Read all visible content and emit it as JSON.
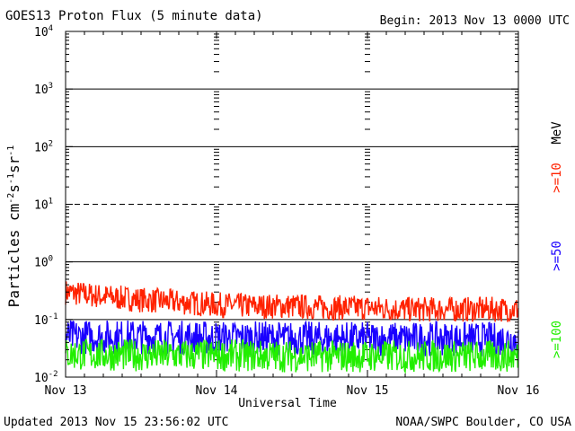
{
  "header": {
    "title": "GOES13 Proton Flux (5 minute data)",
    "begin": "Begin: 2013 Nov 13 0000 UTC"
  },
  "footer": {
    "updated": "Updated 2013 Nov 15 23:56:02 UTC",
    "credit": "NOAA/SWPC Boulder, CO USA"
  },
  "legend": {
    "unit": "MeV"
  },
  "chart_data": {
    "type": "line",
    "title": "GOES13 Proton Flux (5 minute data)",
    "xlabel": "Universal Time",
    "ylabel_parts": [
      "Particles cm",
      "-2",
      "s",
      "-1",
      "sr",
      "-1"
    ],
    "yscale": "log",
    "ylim": [
      0.01,
      10000
    ],
    "ytick_base": "10",
    "yticks": [
      {
        "exp": "4",
        "value": 10000
      },
      {
        "exp": "3",
        "value": 1000
      },
      {
        "exp": "2",
        "value": 100
      },
      {
        "exp": "1",
        "value": 10
      },
      {
        "exp": "0",
        "value": 1
      },
      {
        "exp": "-1",
        "value": 0.1
      },
      {
        "exp": "-2",
        "value": 0.01
      }
    ],
    "xlim": [
      "2013-11-13",
      "2013-11-16"
    ],
    "xticks": [
      {
        "label": "Nov 13",
        "value": "2013-11-13"
      },
      {
        "label": "Nov 14",
        "value": "2013-11-14"
      },
      {
        "label": "Nov 15",
        "value": "2013-11-15"
      },
      {
        "label": "Nov 16",
        "value": "2013-11-16"
      }
    ],
    "threshold_line": 10,
    "grid": true,
    "series": [
      {
        "name": ">=10",
        "color": "#ff2200",
        "x": [
          "2013-11-13 00:00",
          "2013-11-13 06:00",
          "2013-11-13 12:00",
          "2013-11-13 18:00",
          "2013-11-14 00:00",
          "2013-11-14 06:00",
          "2013-11-14 12:00",
          "2013-11-14 18:00",
          "2013-11-15 00:00",
          "2013-11-15 06:00",
          "2013-11-15 12:00",
          "2013-11-15 18:00",
          "2013-11-16 00:00"
        ],
        "values": [
          0.3,
          0.25,
          0.22,
          0.2,
          0.18,
          0.17,
          0.17,
          0.16,
          0.16,
          0.15,
          0.15,
          0.15,
          0.15
        ]
      },
      {
        "name": ">=50",
        "color": "#1a00ff",
        "x": [
          "2013-11-13 00:00",
          "2013-11-13 12:00",
          "2013-11-14 00:00",
          "2013-11-14 12:00",
          "2013-11-15 00:00",
          "2013-11-15 12:00",
          "2013-11-16 00:00"
        ],
        "values": [
          0.05,
          0.05,
          0.048,
          0.047,
          0.046,
          0.046,
          0.045
        ]
      },
      {
        "name": ">=100",
        "color": "#22ee00",
        "x": [
          "2013-11-13 00:00",
          "2013-11-13 12:00",
          "2013-11-14 00:00",
          "2013-11-14 12:00",
          "2013-11-15 00:00",
          "2013-11-15 12:00",
          "2013-11-16 00:00"
        ],
        "values": [
          0.025,
          0.024,
          0.024,
          0.023,
          0.023,
          0.023,
          0.023
        ]
      }
    ]
  }
}
